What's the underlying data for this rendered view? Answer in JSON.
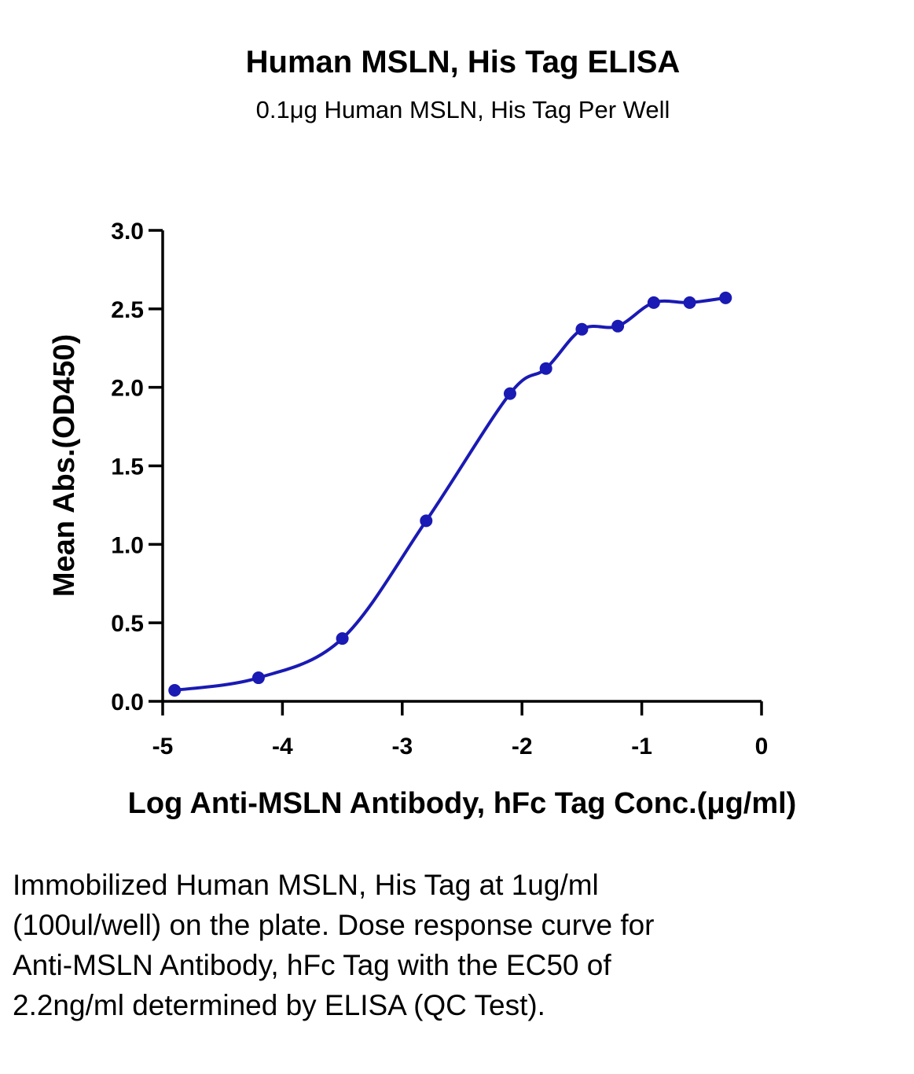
{
  "chart_data": {
    "type": "scatter",
    "title": "Human MSLN, His Tag ELISA",
    "subtitle": "0.1μg Human MSLN, His Tag Per Well",
    "xlabel": "Log Anti-MSLN Antibody, hFc Tag Conc.(μg/ml)",
    "ylabel": "Mean Abs.(OD450)",
    "xlim": [
      -5,
      0
    ],
    "ylim": [
      0,
      3.0
    ],
    "x_ticks": [
      "-5",
      "-4",
      "-3",
      "-2",
      "-1",
      "0"
    ],
    "y_ticks": [
      "0.0",
      "0.5",
      "1.0",
      "1.5",
      "2.0",
      "2.5",
      "3.0"
    ],
    "grid": false,
    "series": [
      {
        "color": "#1a1ab4",
        "points": [
          {
            "x": -4.9,
            "y": 0.07
          },
          {
            "x": -4.2,
            "y": 0.15
          },
          {
            "x": -3.5,
            "y": 0.4
          },
          {
            "x": -2.8,
            "y": 1.15
          },
          {
            "x": -2.1,
            "y": 1.96
          },
          {
            "x": -1.8,
            "y": 2.12
          },
          {
            "x": -1.5,
            "y": 2.37
          },
          {
            "x": -1.2,
            "y": 2.39
          },
          {
            "x": -0.9,
            "y": 2.54
          },
          {
            "x": -0.6,
            "y": 2.54
          },
          {
            "x": -0.3,
            "y": 2.57
          }
        ]
      }
    ]
  },
  "caption": "Immobilized Human MSLN, His Tag at 1ug/ml (100ul/well) on the plate. Dose response curve for Anti-MSLN Antibody, hFc Tag with the EC50 of 2.2ng/ml determined by ELISA (QC Test)."
}
